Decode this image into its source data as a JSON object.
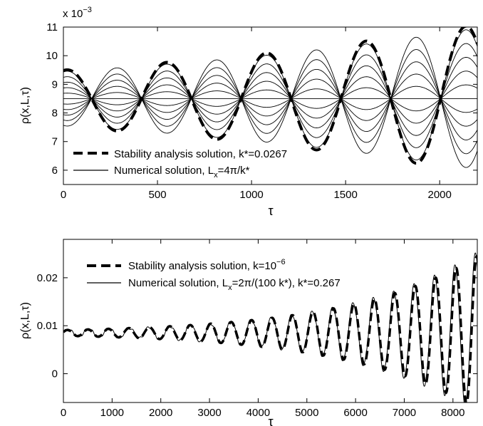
{
  "chart_data": [
    {
      "type": "line",
      "title": "",
      "ylabel": "ρ(x,L,τ)",
      "xlabel": "τ",
      "y_multiplier": "x 10",
      "y_multiplier_exp": "−3",
      "xlim": [
        0,
        2200
      ],
      "ylim": [
        5.5,
        11
      ],
      "xticks": [
        0,
        500,
        1000,
        1500,
        2000
      ],
      "yticks": [
        6,
        7,
        8,
        9,
        10,
        11
      ],
      "grid": false,
      "legend_position": "lower-left",
      "legend": [
        {
          "label": "Stability analysis solution, k*=0.0267",
          "style": "dashed"
        },
        {
          "label_main": "Numerical solution, L",
          "label_sub": "x",
          "label_tail": "=4π/k*",
          "style": "solid"
        }
      ],
      "series_model": {
        "mean": 8.5,
        "initial_amplitude": 1.0,
        "growth_factor_at_end": 2.6,
        "period": 530,
        "numerical_curves": 11
      },
      "nodes": [
        150,
        415,
        680,
        945,
        1210,
        1470,
        1735,
        2000
      ]
    },
    {
      "type": "line",
      "title": "",
      "ylabel": "ρ(x,L,τ)",
      "xlabel": "τ",
      "xlim": [
        0,
        8500
      ],
      "ylim": [
        -0.006,
        0.028
      ],
      "xticks": [
        0,
        1000,
        2000,
        3000,
        4000,
        5000,
        6000,
        7000,
        8000
      ],
      "xtick_labels": [
        "0",
        "1000",
        "2000",
        "3000",
        "4000",
        "5000",
        "6000",
        "7000",
        "8000"
      ],
      "yticks": [
        0,
        0.01,
        0.02
      ],
      "ytick_labels": [
        "0",
        "0.01",
        "0.02"
      ],
      "grid": false,
      "legend_position": "top-left",
      "legend": [
        {
          "label_main": "Stability analysis solution, k=10",
          "label_sup": "−6",
          "style": "dashed"
        },
        {
          "label_main": "Numerical solution, L",
          "label_sub": "x",
          "label_tail": "=2π/(100 k*), k*=0.267",
          "style": "solid"
        }
      ],
      "series_model": {
        "mean": 0.0085,
        "initial_amplitude": 0.0006,
        "amplitude_at_end": 0.016,
        "period": 420
      }
    }
  ]
}
